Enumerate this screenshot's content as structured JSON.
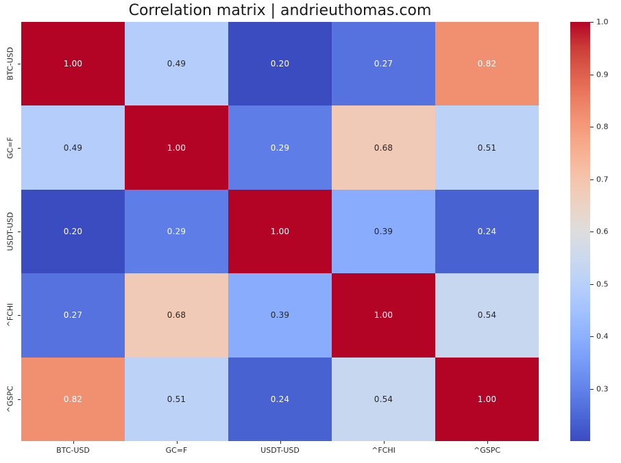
{
  "chart_data": {
    "type": "heatmap",
    "title": "Correlation matrix | andrieuthomas.com",
    "x_labels": [
      "BTC-USD",
      "GC=F",
      "USDT-USD",
      "^FCHI",
      "^GSPC"
    ],
    "y_labels": [
      "BTC-USD",
      "GC=F",
      "USDT-USD",
      "^FCHI",
      "^GSPC"
    ],
    "matrix": [
      [
        1.0,
        0.49,
        0.2,
        0.27,
        0.82
      ],
      [
        0.49,
        1.0,
        0.29,
        0.68,
        0.51
      ],
      [
        0.2,
        0.29,
        1.0,
        0.39,
        0.24
      ],
      [
        0.27,
        0.68,
        0.39,
        1.0,
        0.54
      ],
      [
        0.82,
        0.51,
        0.24,
        0.54,
        1.0
      ]
    ],
    "annotation_decimals": 2,
    "colormap": "coolwarm",
    "vmin": 0.2,
    "vmax": 1.0,
    "colorbar_ticks": [
      1.0,
      0.9,
      0.8,
      0.7,
      0.6,
      0.5,
      0.4,
      0.3
    ],
    "colorbar_tick_decimals": 1,
    "colorbar_position": "right",
    "grid": false
  },
  "colors": {
    "background": "#ffffff",
    "title_text": "#1a1a1a",
    "tick_text": "#262626",
    "tick_mark": "#262626",
    "annotation_dark": "#262626",
    "annotation_light": "#ffffff",
    "colormap_low": "#3b4cc0",
    "colormap_mid": "#dddddd",
    "colormap_high": "#b40426"
  }
}
